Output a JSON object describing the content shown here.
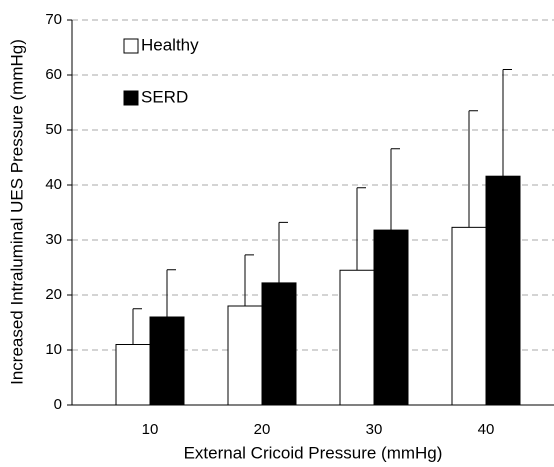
{
  "chart_data": {
    "type": "bar",
    "x_label": "External Cricoid Pressure (mmHg)",
    "y_label": "Increased Intraluminal UES Pressure (mmHg)",
    "categories": [
      "10",
      "20",
      "30",
      "40"
    ],
    "series": [
      {
        "name": "Healthy",
        "color": "#ffffff",
        "values": [
          11,
          18,
          24.5,
          32.3
        ],
        "errors": [
          6.5,
          9.3,
          15,
          21.2
        ]
      },
      {
        "name": "SERD",
        "color": "#000000",
        "values": [
          16,
          22.2,
          31.8,
          41.6
        ],
        "errors": [
          8.6,
          11,
          14.8,
          19.4
        ]
      }
    ],
    "ylim": [
      0,
      70
    ],
    "yticks": [
      0,
      10,
      20,
      30,
      40,
      50,
      60,
      70
    ],
    "grid": true,
    "legend": "top-left"
  }
}
